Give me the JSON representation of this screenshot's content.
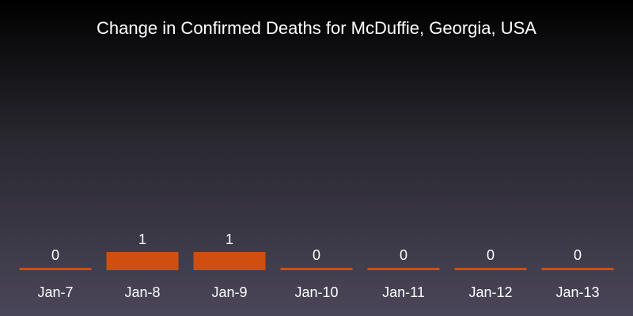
{
  "chart_data": {
    "type": "bar",
    "title": "Change in Confirmed Deaths for McDuffie, Georgia, USA",
    "xlabel": "",
    "ylabel": "",
    "categories": [
      "Jan-7",
      "Jan-8",
      "Jan-9",
      "Jan-10",
      "Jan-11",
      "Jan-12",
      "Jan-13"
    ],
    "values": [
      0,
      1,
      1,
      0,
      0,
      0,
      0
    ],
    "ylim": [
      0,
      1
    ],
    "grid": false,
    "bar_color": "#d04f10",
    "background_top": "#000000",
    "background_bottom": "#4a4659"
  }
}
